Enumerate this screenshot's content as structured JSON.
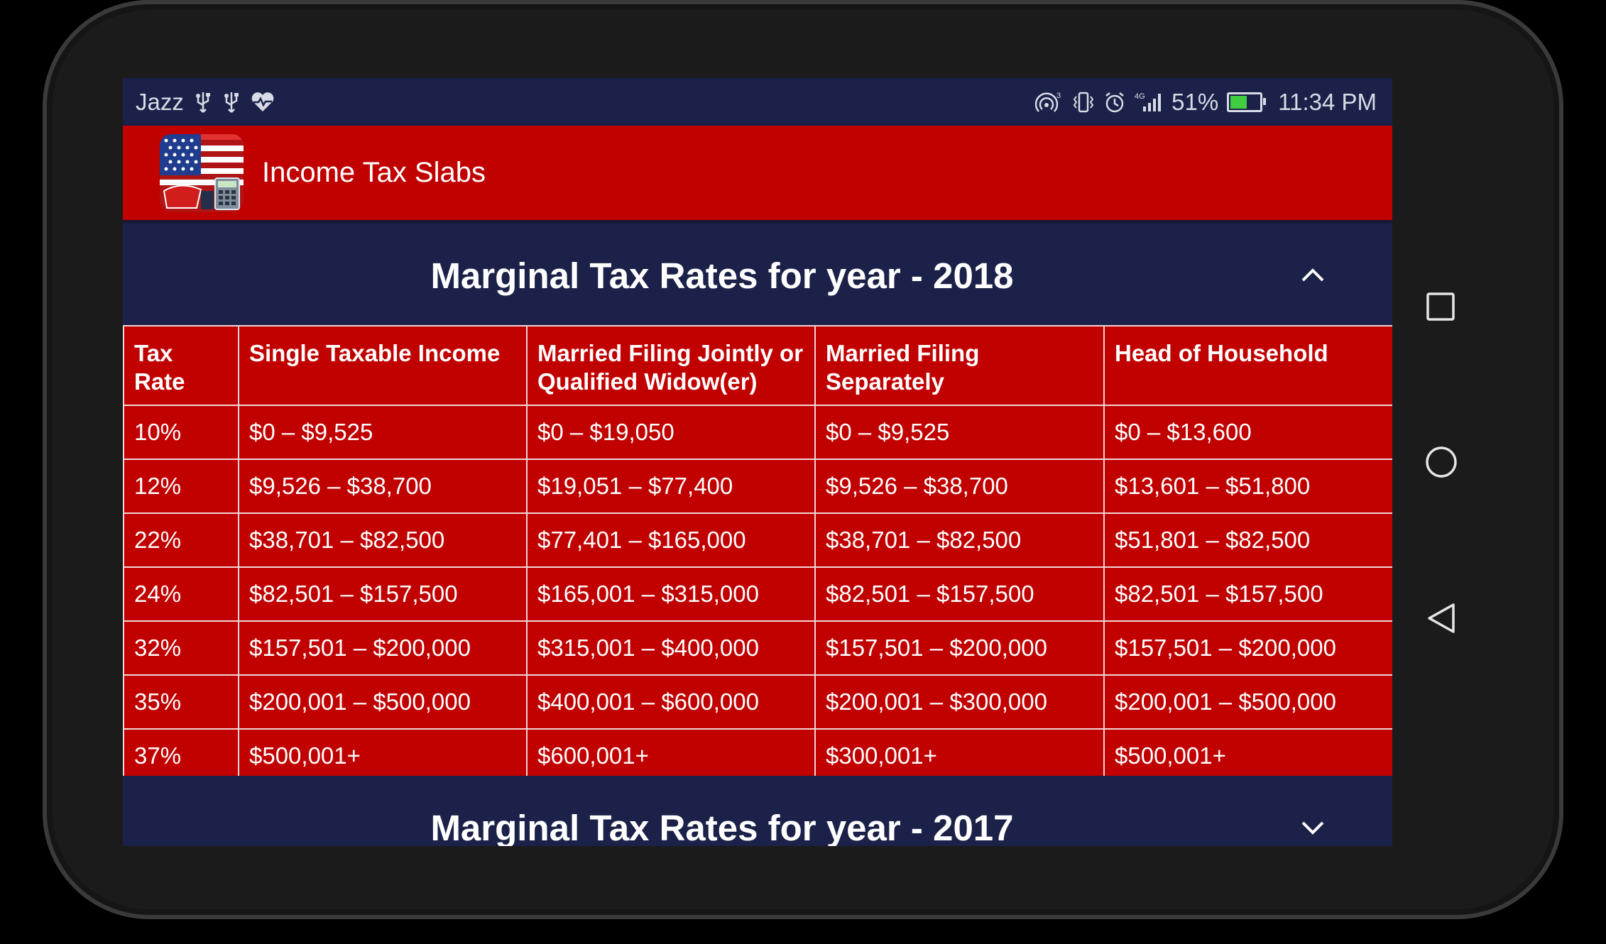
{
  "status_bar": {
    "carrier": "Jazz",
    "network_type": "4G",
    "battery_percent": "51%",
    "battery_level": 0.51,
    "time": "11:34 PM",
    "icons_left": [
      "usb-icon",
      "usb-icon",
      "heart-rate-icon"
    ],
    "icons_right": [
      "hotspot-icon",
      "vibrate-icon",
      "alarm-icon",
      "signal-icon",
      "battery-icon"
    ]
  },
  "app_bar": {
    "title": "Income Tax Slabs",
    "logo": "us-flag-tax-logo"
  },
  "sections": [
    {
      "title": "Marginal Tax Rates for year - 2018",
      "expanded": true,
      "toggle_icon": "chevron-up-icon"
    },
    {
      "title": "Marginal Tax Rates for year - 2017",
      "expanded": false,
      "toggle_icon": "chevron-down-icon"
    }
  ],
  "table": {
    "headers": [
      "Tax Rate",
      "Single Taxable Income",
      "Married Filing Jointly or Qualified Widow(er)",
      "Married Filing Separately",
      "Head of Household"
    ],
    "rows": [
      [
        "10%",
        "$0 – $9,525",
        "$0 – $19,050",
        "$0 – $9,525",
        "$0 – $13,600"
      ],
      [
        "12%",
        "$9,526 – $38,700",
        "$19,051 – $77,400",
        "$9,526 – $38,700",
        "$13,601 – $51,800"
      ],
      [
        "22%",
        "$38,701 – $82,500",
        "$77,401 – $165,000",
        "$38,701 – $82,500",
        "$51,801 – $82,500"
      ],
      [
        "24%",
        "$82,501 – $157,500",
        "$165,001 – $315,000",
        "$82,501 – $157,500",
        "$82,501 – $157,500"
      ],
      [
        "32%",
        "$157,501 – $200,000",
        "$315,001 – $400,000",
        "$157,501 – $200,000",
        "$157,501 – $200,000"
      ],
      [
        "35%",
        "$200,001 – $500,000",
        "$400,001 – $600,000",
        "$200,001 – $300,000",
        "$200,001 – $500,000"
      ],
      [
        "37%",
        "$500,001+",
        "$600,001+",
        "$300,001+",
        "$500,001+"
      ]
    ]
  },
  "nav_bar": {
    "buttons": [
      "recents-button",
      "home-button",
      "back-button"
    ]
  },
  "colors": {
    "navy": "#1b2148",
    "red": "#c10000",
    "white": "#ffffff"
  }
}
